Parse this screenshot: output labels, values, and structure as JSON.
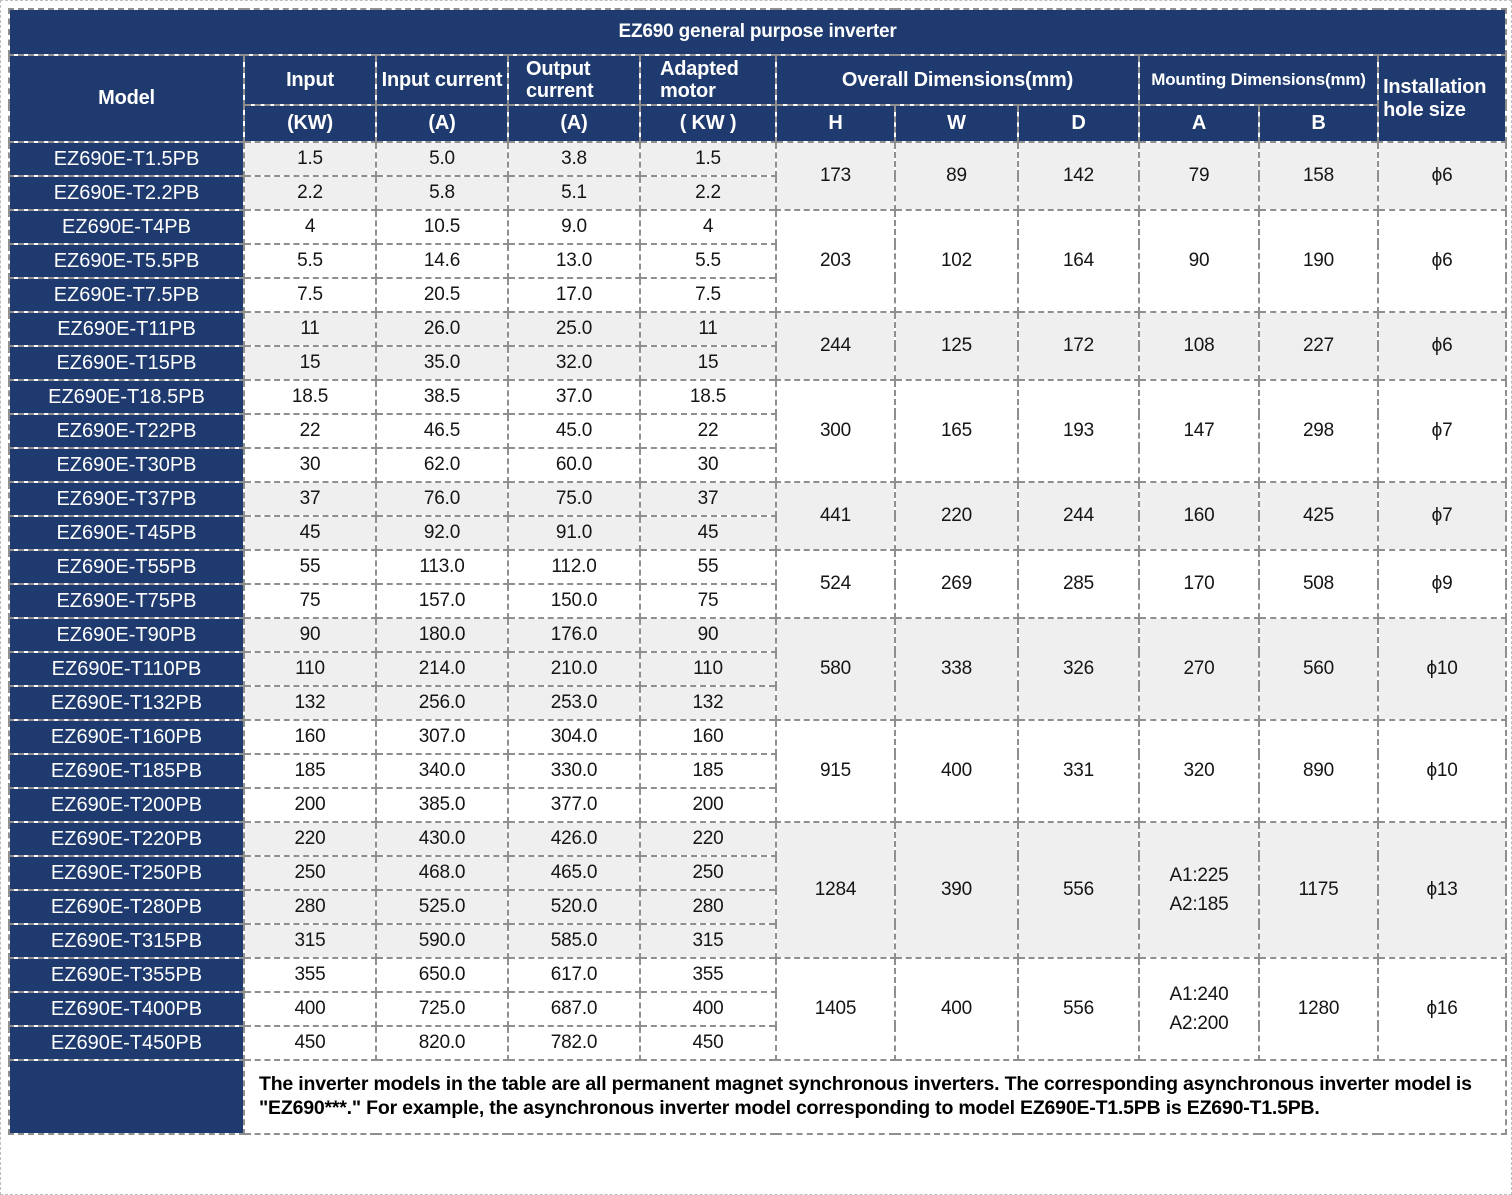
{
  "title": "EZ690 general purpose inverter",
  "colors": {
    "navy": "#1e3a6e",
    "row_shaded": "#efefef",
    "row_white": "#ffffff",
    "border": "#8f8f8f",
    "text": "#151515"
  },
  "header": {
    "model": "Model",
    "input": "Input",
    "input_unit": "(KW)",
    "input_current": "Input current",
    "input_current_unit": "(A)",
    "output_current": "Output current",
    "output_current_unit": "(A)",
    "adapted_motor": "Adapted motor",
    "adapted_motor_unit": "( KW )",
    "overall_dimensions": "Overall Dimensions(mm)",
    "mounting_dimensions": "Mounting Dimensions(mm)",
    "installation_hole": "Installation hole size",
    "h": "H",
    "w": "W",
    "d": "D",
    "a": "A",
    "b": "B"
  },
  "table": {
    "groups": [
      {
        "shaded": true,
        "h": "173",
        "w": "89",
        "d": "142",
        "a": "79",
        "b": "158",
        "hole": "ϕ6",
        "rows": [
          {
            "model": "EZ690E-T1.5PB",
            "input": "1.5",
            "input_current": "5.0",
            "output_current": "3.8",
            "motor": "1.5"
          },
          {
            "model": "EZ690E-T2.2PB",
            "input": "2.2",
            "input_current": "5.8",
            "output_current": "5.1",
            "motor": "2.2"
          }
        ]
      },
      {
        "shaded": false,
        "h": "203",
        "w": "102",
        "d": "164",
        "a": "90",
        "b": "190",
        "hole": "ϕ6",
        "rows": [
          {
            "model": "EZ690E-T4PB",
            "input": "4",
            "input_current": "10.5",
            "output_current": "9.0",
            "motor": "4"
          },
          {
            "model": "EZ690E-T5.5PB",
            "input": "5.5",
            "input_current": "14.6",
            "output_current": "13.0",
            "motor": "5.5"
          },
          {
            "model": "EZ690E-T7.5PB",
            "input": "7.5",
            "input_current": "20.5",
            "output_current": "17.0",
            "motor": "7.5"
          }
        ]
      },
      {
        "shaded": true,
        "h": "244",
        "w": "125",
        "d": "172",
        "a": "108",
        "b": "227",
        "hole": "ϕ6",
        "rows": [
          {
            "model": "EZ690E-T11PB",
            "input": "11",
            "input_current": "26.0",
            "output_current": "25.0",
            "motor": "11"
          },
          {
            "model": "EZ690E-T15PB",
            "input": "15",
            "input_current": "35.0",
            "output_current": "32.0",
            "motor": "15"
          }
        ]
      },
      {
        "shaded": false,
        "h": "300",
        "w": "165",
        "d": "193",
        "a": "147",
        "b": "298",
        "hole": "ϕ7",
        "rows": [
          {
            "model": "EZ690E-T18.5PB",
            "input": "18.5",
            "input_current": "38.5",
            "output_current": "37.0",
            "motor": "18.5"
          },
          {
            "model": "EZ690E-T22PB",
            "input": "22",
            "input_current": "46.5",
            "output_current": "45.0",
            "motor": "22"
          },
          {
            "model": "EZ690E-T30PB",
            "input": "30",
            "input_current": "62.0",
            "output_current": "60.0",
            "motor": "30"
          }
        ]
      },
      {
        "shaded": true,
        "h": "441",
        "w": "220",
        "d": "244",
        "a": "160",
        "b": "425",
        "hole": "ϕ7",
        "rows": [
          {
            "model": "EZ690E-T37PB",
            "input": "37",
            "input_current": "76.0",
            "output_current": "75.0",
            "motor": "37"
          },
          {
            "model": "EZ690E-T45PB",
            "input": "45",
            "input_current": "92.0",
            "output_current": "91.0",
            "motor": "45"
          }
        ]
      },
      {
        "shaded": false,
        "h": "524",
        "w": "269",
        "d": "285",
        "a": "170",
        "b": "508",
        "hole": "ϕ9",
        "rows": [
          {
            "model": "EZ690E-T55PB",
            "input": "55",
            "input_current": "113.0",
            "output_current": "112.0",
            "motor": "55"
          },
          {
            "model": "EZ690E-T75PB",
            "input": "75",
            "input_current": "157.0",
            "output_current": "150.0",
            "motor": "75"
          }
        ]
      },
      {
        "shaded": true,
        "h": "580",
        "w": "338",
        "d": "326",
        "a": "270",
        "b": "560",
        "hole": "ϕ10",
        "rows": [
          {
            "model": "EZ690E-T90PB",
            "input": "90",
            "input_current": "180.0",
            "output_current": "176.0",
            "motor": "90"
          },
          {
            "model": "EZ690E-T110PB",
            "input": "110",
            "input_current": "214.0",
            "output_current": "210.0",
            "motor": "110"
          },
          {
            "model": "EZ690E-T132PB",
            "input": "132",
            "input_current": "256.0",
            "output_current": "253.0",
            "motor": "132"
          }
        ]
      },
      {
        "shaded": false,
        "h": "915",
        "w": "400",
        "d": "331",
        "a": "320",
        "b": "890",
        "hole": "ϕ10",
        "rows": [
          {
            "model": "EZ690E-T160PB",
            "input": "160",
            "input_current": "307.0",
            "output_current": "304.0",
            "motor": "160"
          },
          {
            "model": "EZ690E-T185PB",
            "input": "185",
            "input_current": "340.0",
            "output_current": "330.0",
            "motor": "185"
          },
          {
            "model": "EZ690E-T200PB",
            "input": "200",
            "input_current": "385.0",
            "output_current": "377.0",
            "motor": "200"
          }
        ]
      },
      {
        "shaded": true,
        "h": "1284",
        "w": "390",
        "d": "556",
        "a": "A1:225\nA2:185",
        "b": "1175",
        "hole": "ϕ13",
        "rows": [
          {
            "model": "EZ690E-T220PB",
            "input": "220",
            "input_current": "430.0",
            "output_current": "426.0",
            "motor": "220"
          },
          {
            "model": "EZ690E-T250PB",
            "input": "250",
            "input_current": "468.0",
            "output_current": "465.0",
            "motor": "250"
          },
          {
            "model": "EZ690E-T280PB",
            "input": "280",
            "input_current": "525.0",
            "output_current": "520.0",
            "motor": "280"
          },
          {
            "model": "EZ690E-T315PB",
            "input": "315",
            "input_current": "590.0",
            "output_current": "585.0",
            "motor": "315"
          }
        ]
      },
      {
        "shaded": false,
        "h": "1405",
        "w": "400",
        "d": "556",
        "a": "A1:240\nA2:200",
        "b": "1280",
        "hole": "ϕ16",
        "rows": [
          {
            "model": "EZ690E-T355PB",
            "input": "355",
            "input_current": "650.0",
            "output_current": "617.0",
            "motor": "355"
          },
          {
            "model": "EZ690E-T400PB",
            "input": "400",
            "input_current": "725.0",
            "output_current": "687.0",
            "motor": "400"
          },
          {
            "model": "EZ690E-T450PB",
            "input": "450",
            "input_current": "820.0",
            "output_current": "782.0",
            "motor": "450"
          }
        ]
      }
    ]
  },
  "footer": {
    "note": "The inverter models in the table are all permanent magnet synchronous inverters. The corresponding asynchronous inverter model is \"EZ690***.\" For example, the asynchronous inverter model corresponding to model EZ690E-T1.5PB is EZ690-T1.5PB."
  }
}
